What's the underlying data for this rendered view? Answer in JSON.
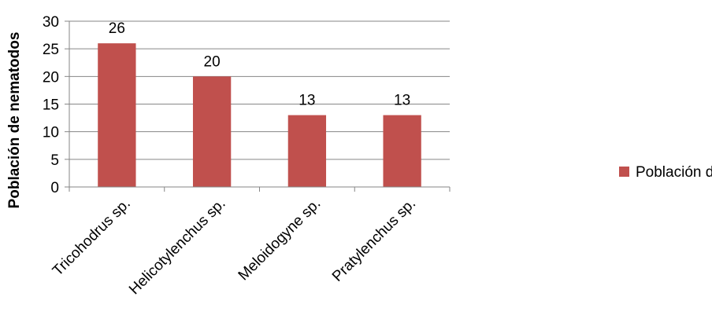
{
  "chart_data": {
    "type": "bar",
    "categories": [
      "Tricohodrus sp.",
      "Helicotylenchus sp.",
      "Meloidogyne sp.",
      "Pratylenchus sp."
    ],
    "series": [
      {
        "name": "Población de nematodos",
        "values": [
          26,
          20,
          13,
          13
        ],
        "color": "#c0504d"
      }
    ],
    "data_labels": [
      "26",
      "20",
      "13",
      "13"
    ],
    "ylabel": "Población de nematodos",
    "xlabel": "",
    "ylim": [
      0,
      30
    ],
    "yticks": [
      "0",
      "5",
      "10",
      "15",
      "20",
      "25",
      "30"
    ],
    "grid": true,
    "legend": "right"
  }
}
